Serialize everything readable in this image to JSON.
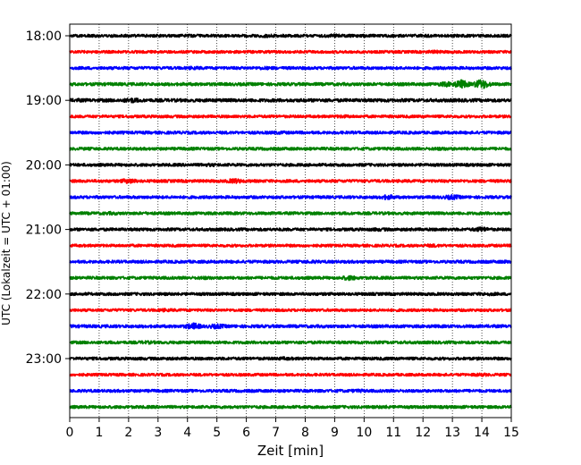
{
  "chart_data": {
    "type": "line",
    "title": "",
    "xlabel": "Zeit  [min]",
    "ylabel": "UTC (Lokalzeit = UTC + 01:00)",
    "xlim": [
      0,
      15
    ],
    "x_ticks": [
      "0",
      "1",
      "2",
      "3",
      "4",
      "5",
      "6",
      "7",
      "8",
      "9",
      "10",
      "11",
      "12",
      "13",
      "14",
      "15"
    ],
    "y_ticks": [
      "18:00",
      "19:00",
      "20:00",
      "21:00",
      "22:00",
      "23:00"
    ],
    "grid": "vertical dotted",
    "legend": "none",
    "series_colors": [
      "#000000",
      "#ff0000",
      "#0000ff",
      "#008000"
    ],
    "traces": [
      {
        "start": "18:00",
        "color": "#000000",
        "noise": 1.6,
        "bursts": [
          {
            "at": 6.7,
            "amp": 2
          },
          {
            "at": 9.0,
            "amp": 2
          }
        ]
      },
      {
        "start": "18:15",
        "color": "#ff0000",
        "noise": 1.5,
        "bursts": [
          {
            "at": 12.4,
            "amp": 2
          }
        ]
      },
      {
        "start": "18:30",
        "color": "#0000ff",
        "noise": 1.6,
        "bursts": [
          {
            "at": 4.2,
            "amp": 2
          },
          {
            "at": 6.6,
            "amp": 2
          }
        ]
      },
      {
        "start": "18:45",
        "color": "#008000",
        "noise": 1.7,
        "bursts": [
          {
            "at": 12.8,
            "amp": 3
          },
          {
            "at": 13.3,
            "amp": 5
          },
          {
            "at": 14.0,
            "amp": 6
          }
        ]
      },
      {
        "start": "19:00",
        "color": "#000000",
        "noise": 1.8,
        "bursts": [
          {
            "at": 2.1,
            "amp": 3
          },
          {
            "at": 0.3,
            "amp": 2
          }
        ]
      },
      {
        "start": "19:15",
        "color": "#ff0000",
        "noise": 1.5,
        "bursts": [
          {
            "at": 9.3,
            "amp": 2
          }
        ]
      },
      {
        "start": "19:30",
        "color": "#0000ff",
        "noise": 1.6,
        "bursts": [
          {
            "at": 7.1,
            "amp": 2
          }
        ]
      },
      {
        "start": "19:45",
        "color": "#008000",
        "noise": 1.6,
        "bursts": [
          {
            "at": 12.6,
            "amp": 2
          }
        ]
      },
      {
        "start": "20:00",
        "color": "#000000",
        "noise": 1.6,
        "bursts": [
          {
            "at": 4.7,
            "amp": 2
          }
        ]
      },
      {
        "start": "20:15",
        "color": "#ff0000",
        "noise": 1.6,
        "bursts": [
          {
            "at": 2.0,
            "amp": 3
          },
          {
            "at": 5.6,
            "amp": 3
          }
        ]
      },
      {
        "start": "20:30",
        "color": "#0000ff",
        "noise": 1.6,
        "bursts": [
          {
            "at": 10.8,
            "amp": 3
          },
          {
            "at": 13.0,
            "amp": 3
          }
        ]
      },
      {
        "start": "20:45",
        "color": "#008000",
        "noise": 1.6,
        "bursts": [
          {
            "at": 1.4,
            "amp": 2
          }
        ]
      },
      {
        "start": "21:00",
        "color": "#000000",
        "noise": 1.6,
        "bursts": [
          {
            "at": 10.5,
            "amp": 2
          },
          {
            "at": 14.0,
            "amp": 3
          }
        ]
      },
      {
        "start": "21:15",
        "color": "#ff0000",
        "noise": 1.5,
        "bursts": [
          {
            "at": 12.3,
            "amp": 2
          }
        ]
      },
      {
        "start": "21:30",
        "color": "#0000ff",
        "noise": 1.6,
        "bursts": [
          {
            "at": 8.2,
            "amp": 2
          },
          {
            "at": 14.9,
            "amp": 2
          }
        ]
      },
      {
        "start": "21:45",
        "color": "#008000",
        "noise": 1.6,
        "bursts": [
          {
            "at": 9.5,
            "amp": 3
          },
          {
            "at": 4.6,
            "amp": 2
          }
        ]
      },
      {
        "start": "22:00",
        "color": "#000000",
        "noise": 1.6,
        "bursts": [
          {
            "at": 14.2,
            "amp": 2
          }
        ]
      },
      {
        "start": "22:15",
        "color": "#ff0000",
        "noise": 1.5,
        "bursts": [
          {
            "at": 3.2,
            "amp": 2
          }
        ]
      },
      {
        "start": "22:30",
        "color": "#0000ff",
        "noise": 1.7,
        "bursts": [
          {
            "at": 4.2,
            "amp": 4
          },
          {
            "at": 5.0,
            "amp": 3
          }
        ]
      },
      {
        "start": "22:45",
        "color": "#008000",
        "noise": 1.6,
        "bursts": [
          {
            "at": 2.6,
            "amp": 2
          }
        ]
      },
      {
        "start": "23:00",
        "color": "#000000",
        "noise": 1.6,
        "bursts": [
          {
            "at": 7.3,
            "amp": 2
          }
        ]
      },
      {
        "start": "23:15",
        "color": "#ff0000",
        "noise": 1.5,
        "bursts": [
          {
            "at": 14.0,
            "amp": 2
          }
        ]
      },
      {
        "start": "23:30",
        "color": "#0000ff",
        "noise": 1.6,
        "bursts": [
          {
            "at": 9.8,
            "amp": 2
          }
        ]
      },
      {
        "start": "23:45",
        "color": "#008000",
        "noise": 1.6,
        "bursts": [
          {
            "at": 10.7,
            "amp": 2
          }
        ]
      }
    ]
  }
}
